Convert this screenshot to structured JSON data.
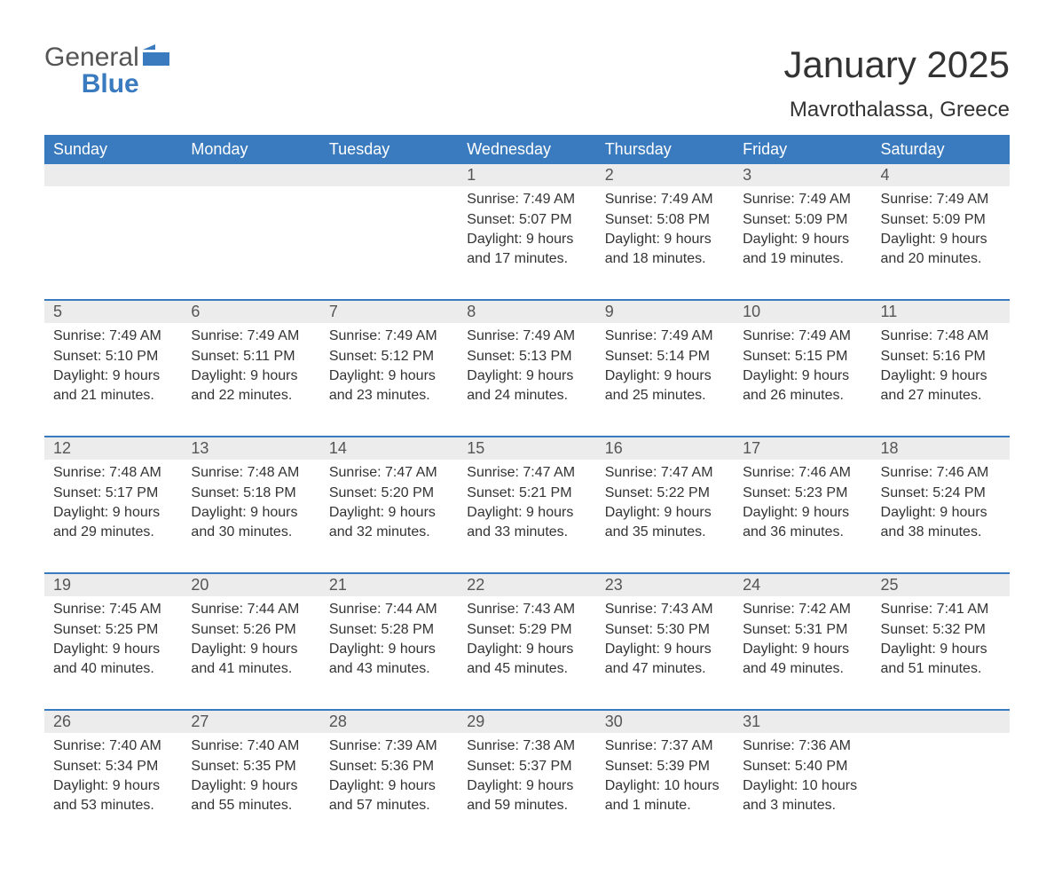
{
  "brand": {
    "word1": "General",
    "word2": "Blue"
  },
  "title": "January 2025",
  "location": "Mavrothalassa, Greece",
  "colors": {
    "brand_blue": "#3a7bbf",
    "header_bg": "#3a7bbf",
    "daynum_bg": "#ececec",
    "page_bg": "#ffffff",
    "text": "#333333"
  },
  "day_headers": [
    "Sunday",
    "Monday",
    "Tuesday",
    "Wednesday",
    "Thursday",
    "Friday",
    "Saturday"
  ],
  "weeks": [
    [
      null,
      null,
      null,
      {
        "n": "1",
        "sunrise": "7:49 AM",
        "sunset": "5:07 PM",
        "daylight": "9 hours and 17 minutes."
      },
      {
        "n": "2",
        "sunrise": "7:49 AM",
        "sunset": "5:08 PM",
        "daylight": "9 hours and 18 minutes."
      },
      {
        "n": "3",
        "sunrise": "7:49 AM",
        "sunset": "5:09 PM",
        "daylight": "9 hours and 19 minutes."
      },
      {
        "n": "4",
        "sunrise": "7:49 AM",
        "sunset": "5:09 PM",
        "daylight": "9 hours and 20 minutes."
      }
    ],
    [
      {
        "n": "5",
        "sunrise": "7:49 AM",
        "sunset": "5:10 PM",
        "daylight": "9 hours and 21 minutes."
      },
      {
        "n": "6",
        "sunrise": "7:49 AM",
        "sunset": "5:11 PM",
        "daylight": "9 hours and 22 minutes."
      },
      {
        "n": "7",
        "sunrise": "7:49 AM",
        "sunset": "5:12 PM",
        "daylight": "9 hours and 23 minutes."
      },
      {
        "n": "8",
        "sunrise": "7:49 AM",
        "sunset": "5:13 PM",
        "daylight": "9 hours and 24 minutes."
      },
      {
        "n": "9",
        "sunrise": "7:49 AM",
        "sunset": "5:14 PM",
        "daylight": "9 hours and 25 minutes."
      },
      {
        "n": "10",
        "sunrise": "7:49 AM",
        "sunset": "5:15 PM",
        "daylight": "9 hours and 26 minutes."
      },
      {
        "n": "11",
        "sunrise": "7:48 AM",
        "sunset": "5:16 PM",
        "daylight": "9 hours and 27 minutes."
      }
    ],
    [
      {
        "n": "12",
        "sunrise": "7:48 AM",
        "sunset": "5:17 PM",
        "daylight": "9 hours and 29 minutes."
      },
      {
        "n": "13",
        "sunrise": "7:48 AM",
        "sunset": "5:18 PM",
        "daylight": "9 hours and 30 minutes."
      },
      {
        "n": "14",
        "sunrise": "7:47 AM",
        "sunset": "5:20 PM",
        "daylight": "9 hours and 32 minutes."
      },
      {
        "n": "15",
        "sunrise": "7:47 AM",
        "sunset": "5:21 PM",
        "daylight": "9 hours and 33 minutes."
      },
      {
        "n": "16",
        "sunrise": "7:47 AM",
        "sunset": "5:22 PM",
        "daylight": "9 hours and 35 minutes."
      },
      {
        "n": "17",
        "sunrise": "7:46 AM",
        "sunset": "5:23 PM",
        "daylight": "9 hours and 36 minutes."
      },
      {
        "n": "18",
        "sunrise": "7:46 AM",
        "sunset": "5:24 PM",
        "daylight": "9 hours and 38 minutes."
      }
    ],
    [
      {
        "n": "19",
        "sunrise": "7:45 AM",
        "sunset": "5:25 PM",
        "daylight": "9 hours and 40 minutes."
      },
      {
        "n": "20",
        "sunrise": "7:44 AM",
        "sunset": "5:26 PM",
        "daylight": "9 hours and 41 minutes."
      },
      {
        "n": "21",
        "sunrise": "7:44 AM",
        "sunset": "5:28 PM",
        "daylight": "9 hours and 43 minutes."
      },
      {
        "n": "22",
        "sunrise": "7:43 AM",
        "sunset": "5:29 PM",
        "daylight": "9 hours and 45 minutes."
      },
      {
        "n": "23",
        "sunrise": "7:43 AM",
        "sunset": "5:30 PM",
        "daylight": "9 hours and 47 minutes."
      },
      {
        "n": "24",
        "sunrise": "7:42 AM",
        "sunset": "5:31 PM",
        "daylight": "9 hours and 49 minutes."
      },
      {
        "n": "25",
        "sunrise": "7:41 AM",
        "sunset": "5:32 PM",
        "daylight": "9 hours and 51 minutes."
      }
    ],
    [
      {
        "n": "26",
        "sunrise": "7:40 AM",
        "sunset": "5:34 PM",
        "daylight": "9 hours and 53 minutes."
      },
      {
        "n": "27",
        "sunrise": "7:40 AM",
        "sunset": "5:35 PM",
        "daylight": "9 hours and 55 minutes."
      },
      {
        "n": "28",
        "sunrise": "7:39 AM",
        "sunset": "5:36 PM",
        "daylight": "9 hours and 57 minutes."
      },
      {
        "n": "29",
        "sunrise": "7:38 AM",
        "sunset": "5:37 PM",
        "daylight": "9 hours and 59 minutes."
      },
      {
        "n": "30",
        "sunrise": "7:37 AM",
        "sunset": "5:39 PM",
        "daylight": "10 hours and 1 minute."
      },
      {
        "n": "31",
        "sunrise": "7:36 AM",
        "sunset": "5:40 PM",
        "daylight": "10 hours and 3 minutes."
      },
      null
    ]
  ],
  "labels": {
    "sunrise": "Sunrise: ",
    "sunset": "Sunset: ",
    "daylight": "Daylight: "
  }
}
